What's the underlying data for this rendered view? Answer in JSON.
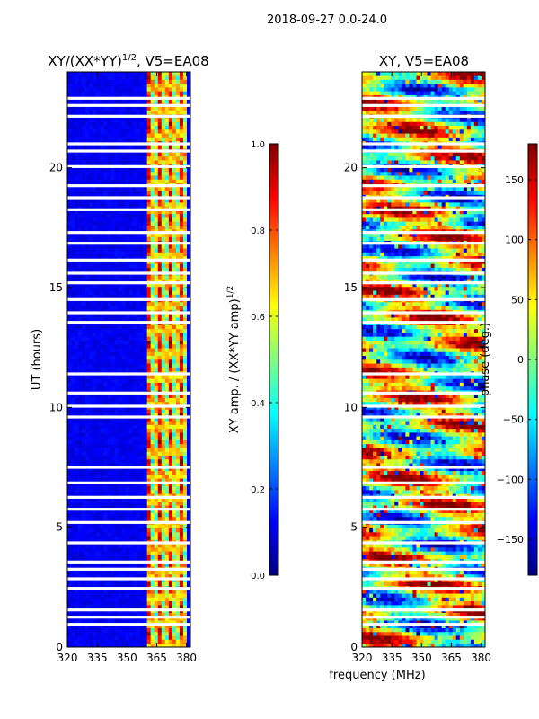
{
  "suptitle": "2018-09-27 0.0-24.0",
  "xlabel": "frequency (MHz)",
  "colors": {
    "jet": [
      "#00007f",
      "#0000ff",
      "#007fff",
      "#00ffff",
      "#7fff7f",
      "#ffff00",
      "#ff7f00",
      "#ff0000",
      "#7f0000"
    ]
  },
  "chart_data": [
    {
      "type": "heatmap",
      "title_prefix": "XY/(XX*YY)",
      "title_exp": "1/2",
      "title_suffix": ", V5=EA08",
      "ylabel": "UT (hours)",
      "xlim": [
        320,
        382
      ],
      "ylim": [
        0,
        24
      ],
      "xticks": [
        "320",
        "335",
        "350",
        "365",
        "380"
      ],
      "yticks": [
        "0",
        "5",
        "10",
        "15",
        "20"
      ],
      "colorbar": {
        "label": "XY amp. / (XX*YY amp)",
        "label_exp": "1/2",
        "range": [
          0.0,
          1.0
        ],
        "ticks": [
          "0.0",
          "0.2",
          "0.4",
          "0.6",
          "0.8",
          "1.0"
        ]
      },
      "band_hot_mhz": [
        361,
        381
      ],
      "background_level": 0.08,
      "gaps_hours": [
        0.95,
        1.25,
        1.55,
        2.45,
        2.85,
        3.25,
        3.55,
        4.35,
        5.2,
        5.75,
        6.25,
        6.85,
        7.5,
        9.6,
        10.05,
        10.6,
        11.4,
        13.55,
        13.95,
        14.5,
        15.2,
        15.6,
        16.15,
        16.85,
        17.3,
        18.25,
        18.75,
        19.25,
        20.05,
        20.7,
        21.0,
        22.15,
        22.6,
        22.9
      ]
    },
    {
      "type": "heatmap",
      "title": "XY, V5=EA08",
      "xlim": [
        320,
        382
      ],
      "ylim": [
        0,
        24
      ],
      "xticks": [
        "320",
        "335",
        "350",
        "365",
        "380"
      ],
      "yticks": [
        "0",
        "5",
        "10",
        "15",
        "20"
      ],
      "colorbar": {
        "label": "phase (deg.)",
        "range": [
          -180,
          180
        ],
        "ticks": [
          "-150",
          "-100",
          "-50",
          "0",
          "50",
          "100",
          "150"
        ]
      },
      "gaps_hours": [
        0.95,
        1.25,
        1.55,
        2.45,
        2.85,
        3.25,
        3.55,
        4.35,
        5.2,
        5.75,
        6.25,
        6.85,
        7.5,
        9.6,
        10.05,
        10.6,
        11.4,
        13.55,
        13.95,
        14.5,
        15.2,
        15.6,
        16.15,
        16.85,
        17.3,
        18.25,
        18.75,
        19.25,
        20.05,
        20.7,
        21.0,
        22.15,
        22.6,
        22.9
      ]
    }
  ]
}
